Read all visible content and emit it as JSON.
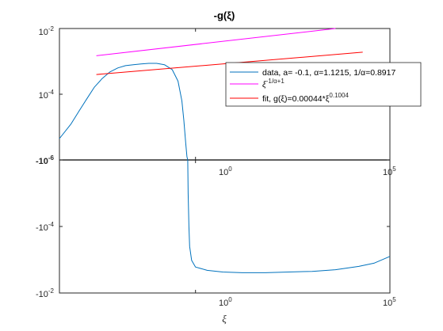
{
  "chart_data": {
    "type": "line",
    "title": "-g(ξ)",
    "xlabel": "ξ",
    "x_scale": "log",
    "xlim_log10": [
      -3.5,
      5
    ],
    "x_ticks": [
      {
        "exp": "0",
        "value": 1
      },
      {
        "exp": "5",
        "value": 100000
      }
    ],
    "y_scale": "log (split: positive top, negative bottom)",
    "top_panel": {
      "ylim_log10": [
        -6,
        -2
      ],
      "y_ticks": [
        {
          "base": "10",
          "exp": "-2"
        },
        {
          "base": "10",
          "exp": "-4"
        },
        {
          "base": "-10",
          "exp": "-6"
        }
      ]
    },
    "bottom_panel": {
      "ylim_log10": [
        -6,
        -2
      ],
      "y_ticks": [
        {
          "base": "-10",
          "exp": "-4"
        },
        {
          "base": "-10",
          "exp": "-2"
        }
      ]
    },
    "legend": {
      "placement": "top-right",
      "entries": [
        {
          "series": "data",
          "label": "data, a= -0.1, α=1.1215, 1/α=0.8917",
          "color": "#0072BD"
        },
        {
          "series": "power",
          "label": "ξ",
          "label_sup": "-1/α+1",
          "color": "#FF00FF"
        },
        {
          "series": "fit",
          "label": "fit, g(ξ)=0.00044*ξ",
          "label_sup": "0.1004",
          "color": "#FF0000"
        }
      ]
    },
    "series": [
      {
        "name": "data",
        "color": "#0072BD",
        "panel": "top",
        "x_log10": [
          -3.5,
          -3.2,
          -3.0,
          -2.8,
          -2.6,
          -2.4,
          -2.2,
          -2.0,
          -1.8,
          -1.6,
          -1.4,
          -1.2,
          -1.0,
          -0.8,
          -0.6,
          -0.45,
          -0.35,
          -0.3,
          -0.25,
          -0.22,
          -0.2
        ],
        "y_log10": [
          -5.35,
          -4.9,
          -4.52,
          -4.15,
          -3.78,
          -3.52,
          -3.32,
          -3.2,
          -3.13,
          -3.1,
          -3.08,
          -3.06,
          -3.06,
          -3.1,
          -3.25,
          -3.6,
          -4.2,
          -4.8,
          -5.5,
          -5.9,
          -6.0
        ]
      },
      {
        "name": "data",
        "color": "#0072BD",
        "panel": "bottom",
        "x_log10": [
          -0.2,
          -0.19,
          -0.17,
          -0.15,
          -0.1,
          0.0,
          0.3,
          0.7,
          1.2,
          1.8,
          2.4,
          3.0,
          3.6,
          4.2,
          4.6,
          5.0
        ],
        "y_log10": [
          -6.0,
          -5.0,
          -4.0,
          -3.4,
          -2.98,
          -2.78,
          -2.68,
          -2.63,
          -2.61,
          -2.61,
          -2.63,
          -2.65,
          -2.7,
          -2.8,
          -2.9,
          -3.1
        ]
      },
      {
        "name": "power",
        "color": "#FF00FF",
        "panel": "top",
        "x_log10": [
          -2.55,
          3.6
        ],
        "y_log10": [
          -2.83,
          -2.0
        ]
      },
      {
        "name": "fit",
        "color": "#FF0000",
        "panel": "top",
        "x_log10": [
          -2.55,
          4.3
        ],
        "y_log10": [
          -3.4,
          -2.72
        ]
      }
    ]
  }
}
